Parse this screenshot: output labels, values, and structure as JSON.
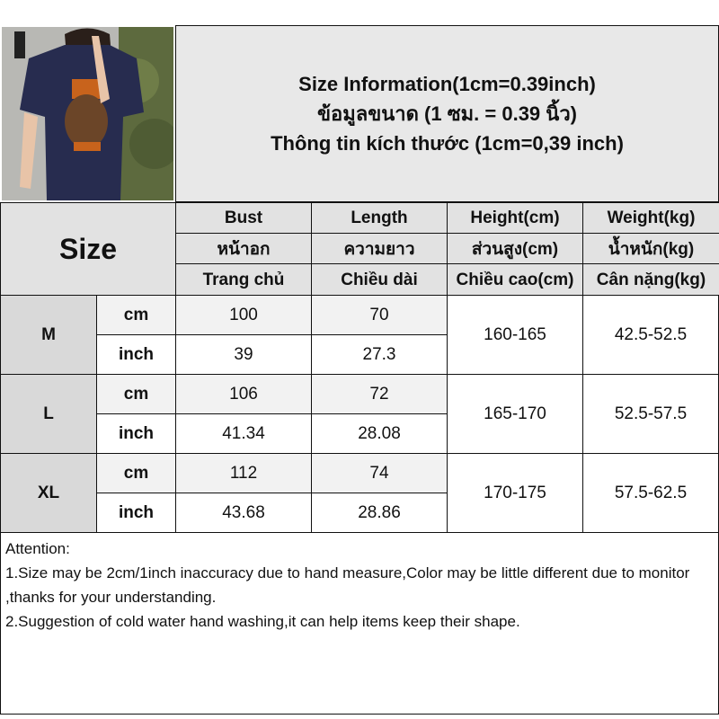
{
  "header": {
    "lines": [
      "Size Information(1cm=0.39inch)",
      "ข้อมูลขนาด (1 ซม. = 0.39 นิ้ว)",
      "Thông tin kích thước (1cm=0,39 inch)"
    ]
  },
  "size_label": "Size",
  "columns": [
    {
      "en": "Bust",
      "th": "หน้าอก",
      "vi": "Trang chủ"
    },
    {
      "en": "Length",
      "th": "ความยาว",
      "vi": "Chiều dài"
    },
    {
      "en": "Height(cm)",
      "th": "ส่วนสูง(cm)",
      "vi": "Chiều cao(cm)"
    },
    {
      "en": "Weight(kg)",
      "th": "น้ำหนัก(kg)",
      "vi": "Cân nặng(kg)"
    }
  ],
  "units": {
    "cm": "cm",
    "inch": "inch"
  },
  "rows": [
    {
      "size": "M",
      "cm": {
        "bust": "100",
        "length": "70"
      },
      "inch": {
        "bust": "39",
        "length": "27.3"
      },
      "height": "160-165",
      "weight": "42.5-52.5"
    },
    {
      "size": "L",
      "cm": {
        "bust": "106",
        "length": "72"
      },
      "inch": {
        "bust": "41.34",
        "length": "28.08"
      },
      "height": "165-170",
      "weight": "52.5-57.5"
    },
    {
      "size": "XL",
      "cm": {
        "bust": "112",
        "length": "74"
      },
      "inch": {
        "bust": "43.68",
        "length": "28.86"
      },
      "height": "170-175",
      "weight": "57.5-62.5"
    }
  ],
  "attention": {
    "title": "Attention:",
    "items": [
      "1.Size may be 2cm/1inch inaccuracy due to hand measure,Color may be little different due to monitor ,thanks for your understanding.",
      "2.Suggestion of cold water hand washing,it can help items keep their shape."
    ]
  },
  "colors": {
    "header_bg": "#e2e2e2",
    "size_bg": "#d9d9d9",
    "cm_row_bg": "#f2f2f2",
    "shirt": "#272c4f",
    "bear_hat": "#c8631c"
  }
}
